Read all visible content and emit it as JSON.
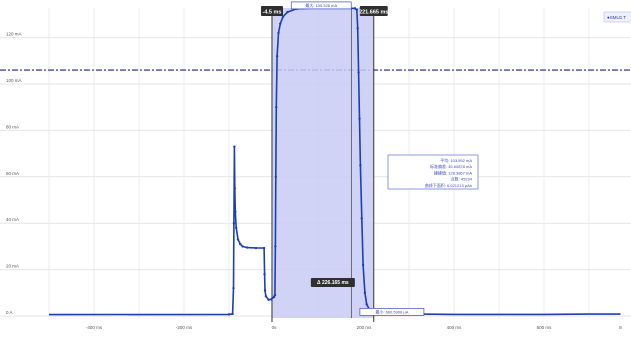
{
  "chart_data": {
    "type": "line",
    "xlim": [
      -500,
      770
    ],
    "ylim": [
      -2,
      134
    ],
    "x_unit": "ms",
    "y_unit": "mA",
    "x_ticks": [
      {
        "v": -400,
        "label": "-400 ms"
      },
      {
        "v": -200,
        "label": "-200 ms"
      },
      {
        "v": 0,
        "label": "0s"
      },
      {
        "v": 200,
        "label": "200 ms"
      },
      {
        "v": 400,
        "label": "400 ms"
      },
      {
        "v": 600,
        "label": "600 ms"
      },
      {
        "v": 770,
        "label": "8"
      }
    ],
    "y_ticks": [
      {
        "v": 0,
        "label": "0 A"
      },
      {
        "v": 20,
        "label": "20 mA"
      },
      {
        "v": 40,
        "label": "40 mA"
      },
      {
        "v": 60,
        "label": "60 mA"
      },
      {
        "v": 80,
        "label": "80 mA"
      },
      {
        "v": 100,
        "label": "100 mA"
      },
      {
        "v": 120,
        "label": "120 mA"
      }
    ],
    "reference_line": {
      "y": 106,
      "style": "dash-dot"
    },
    "series": [
      {
        "name": "",
        "color": "#1c3fb8",
        "points": [
          [
            -500,
            0.6
          ],
          [
            -100,
            0.7
          ],
          [
            -92,
            0.9
          ],
          [
            -90,
            12
          ],
          [
            -89,
            40
          ],
          [
            -88,
            73
          ],
          [
            -87,
            55
          ],
          [
            -86,
            45
          ],
          [
            -84,
            38
          ],
          [
            -80,
            33
          ],
          [
            -75,
            31
          ],
          [
            -70,
            30
          ],
          [
            -60,
            29.5
          ],
          [
            -40,
            29.3
          ],
          [
            -22,
            29.3
          ],
          [
            -21,
            18
          ],
          [
            -20,
            11
          ],
          [
            -18,
            8.5
          ],
          [
            -12,
            7
          ],
          [
            -6,
            7.2
          ],
          [
            0,
            8.2
          ],
          [
            2,
            9
          ],
          [
            3,
            30
          ],
          [
            4,
            60
          ],
          [
            5,
            90
          ],
          [
            7,
            112
          ],
          [
            10,
            122
          ],
          [
            14,
            126
          ],
          [
            20,
            129
          ],
          [
            30,
            131
          ],
          [
            50,
            132.4
          ],
          [
            100,
            132.8
          ],
          [
            150,
            132.8
          ],
          [
            180,
            132.6
          ],
          [
            184,
            132
          ],
          [
            186,
            124
          ],
          [
            188,
            105
          ],
          [
            190,
            85
          ],
          [
            192,
            65
          ],
          [
            195,
            42
          ],
          [
            198,
            22
          ],
          [
            202,
            10
          ],
          [
            206,
            5
          ],
          [
            212,
            2.8
          ],
          [
            222,
            1.6
          ],
          [
            240,
            1.1
          ],
          [
            300,
            0.9
          ],
          [
            400,
            0.7
          ],
          [
            500,
            0.7
          ],
          [
            600,
            0.7
          ],
          [
            700,
            0.8
          ],
          [
            770,
            0.8
          ]
        ]
      }
    ],
    "selection": {
      "x_start": -4.5,
      "x_end": 221.665,
      "start_label": "-4.5 ms",
      "end_label": "221.665 ms",
      "delta_label": "Δ 226.165 ms"
    },
    "cursor": {
      "x": 172
    },
    "markers": {
      "max_label": "最大: 135.528 mA",
      "min_label": "最小: 660.5908 μA"
    },
    "stats": [
      "平均: 103.592 mA",
      "标准偏差: 45.60878 mA",
      "峰峰值: 128.3867 mA",
      "点数: 45234",
      "曲线下面积: 6.621213 μAh"
    ],
    "legend": {
      "label": "●SMU1 T"
    },
    "grid": true
  }
}
